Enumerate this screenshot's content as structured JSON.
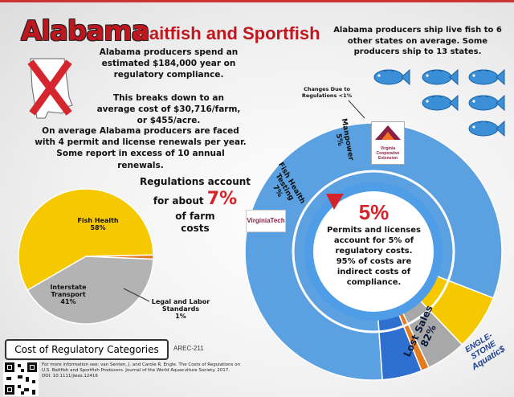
{
  "header": {
    "title": "Alabama",
    "subtitle": "Baitfish and Sportfish"
  },
  "intro": {
    "compliance": "Alabama producers spend an estimated $184,000 year on regulatory compliance.",
    "breakdown": "This breaks down to an average cost of $30,716/farm, or $455/acre.",
    "permits": "On average Alabama producers are faced with 4 permit and license renewals per year. Some report in excess of 10 annual renewals."
  },
  "shipping": {
    "text": "Alabama producers ship live fish to 6 other states on average. Some producers ship to 13 states.",
    "fish_icon_count": 6
  },
  "regulations_callout": {
    "line1": "Regulations account",
    "line2": "for about",
    "percent": "7%",
    "line3": "of farm",
    "line4": "costs"
  },
  "small_pie": {
    "labels": {
      "fish_health": "Fish Health",
      "fish_health_pct": "58%",
      "interstate": "Interstate",
      "transport": "Transport",
      "interstate_pct": "41%",
      "legal1": "Legal and Labor",
      "legal2": "Standards",
      "legal_pct": "1%"
    }
  },
  "big_donut": {
    "center_pct": "5%",
    "center_text1": "Permits and licenses",
    "center_text2": "account for 5% of",
    "center_text3": "regulatory costs.",
    "center_text4": "95% of costs are",
    "center_text5": "indirect costs of",
    "center_text6": "compliance.",
    "changes_label1": "Changes Due to",
    "changes_label2": "Regulations <1%",
    "manpower": "Manpower",
    "manpower_pct": "5%",
    "fish_health_1": "Fish Health",
    "fish_health_2": "Testing",
    "fish_health_pct": "7%",
    "lost_sales": "Lost Sales",
    "lost_sales_pct": "82%"
  },
  "logos": {
    "virginia_tech": "VirginiaTech",
    "vcc_1": "Virginia",
    "vcc_2": "Cooperative",
    "vcc_3": "Extension",
    "engle_1": "ENGLE-STONE",
    "engle_2": "Aquatic$"
  },
  "footer": {
    "cost_categories": "Cost of Regulatory Categories",
    "code": "AREC-211",
    "ref1": "For more information see: van Senten, J. and Carole R. Engle. The Costs of Regulations on",
    "ref2": "U.S. Baitfish and Sportfish Producers. Journal of the World Aquaculture Society. 2017.",
    "doi": "DOI: 10.1111/jwas.12416"
  },
  "chart_data": [
    {
      "type": "pie",
      "categories": [
        "Fish Health",
        "Interstate Transport",
        "Legal and Labor Standards"
      ],
      "values": [
        58,
        41,
        1
      ],
      "colors": [
        "#f6c800",
        "#b3b3b3",
        "#e57a1f"
      ]
    },
    {
      "type": "pie",
      "categories": [
        "Lost Sales",
        "Permits and licenses",
        "Fish Health Testing",
        "Manpower",
        "Changes Due to Regulations"
      ],
      "values": [
        82,
        5,
        7,
        5,
        1
      ],
      "colors": [
        "#5ba0e0",
        "#2f6fcf",
        "#f6c800",
        "#a8a8a8",
        "#e57a1f"
      ]
    }
  ]
}
